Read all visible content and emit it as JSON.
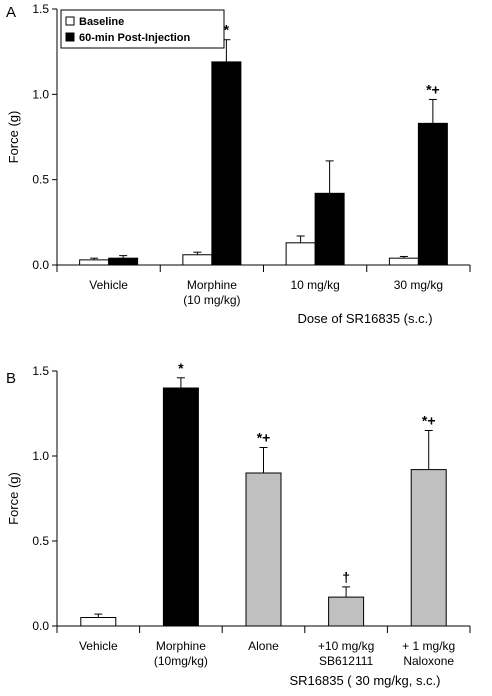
{
  "chart_data": [
    {
      "panel": "A",
      "type": "bar",
      "ylabel": "Force (g)",
      "xlabel": "Dose of SR16835 (s.c.)",
      "ylim": [
        0,
        1.5
      ],
      "yticks": [
        "0.0",
        "0.5",
        "1.0",
        "1.5"
      ],
      "categories": [
        [
          "Vehicle"
        ],
        [
          "Morphine",
          "(10 mg/kg)"
        ],
        [
          "10 mg/kg"
        ],
        [
          "30 mg/kg"
        ]
      ],
      "legend_position": "top-left",
      "series": [
        {
          "name": "Baseline",
          "fill": "#ffffff",
          "values": [
            0.03,
            0.06,
            0.13,
            0.04
          ],
          "errors": [
            0.01,
            0.015,
            0.04,
            0.01
          ],
          "sig": [
            "",
            "",
            "",
            ""
          ]
        },
        {
          "name": "60-min Post-Injection",
          "fill": "#000000",
          "values": [
            0.04,
            1.19,
            0.42,
            0.83
          ],
          "errors": [
            0.015,
            0.13,
            0.19,
            0.14
          ],
          "sig": [
            "",
            "*",
            "",
            "*+"
          ]
        }
      ]
    },
    {
      "panel": "B",
      "type": "bar",
      "ylabel": "Force (g)",
      "xlabel": "SR16835 ( 30 mg/kg, s.c.)",
      "ylim": [
        0,
        1.5
      ],
      "yticks": [
        "0.0",
        "0.5",
        "1.0",
        "1.5"
      ],
      "categories": [
        [
          "Vehicle"
        ],
        [
          "Morphine",
          "(10mg/kg)"
        ],
        [
          "Alone"
        ],
        [
          "+10 mg/kg",
          "SB612111"
        ],
        [
          "+ 1 mg/kg",
          "Naloxone"
        ]
      ],
      "series": [
        {
          "values": [
            0.05,
            1.4,
            0.9,
            0.17,
            0.92
          ],
          "errors": [
            0.02,
            0.06,
            0.15,
            0.06,
            0.23
          ],
          "fills": [
            "#ffffff",
            "#000000",
            "#c0c0c0",
            "#c0c0c0",
            "#c0c0c0"
          ],
          "sig": [
            "",
            "*",
            "*+",
            "†",
            "*+"
          ]
        }
      ]
    }
  ]
}
